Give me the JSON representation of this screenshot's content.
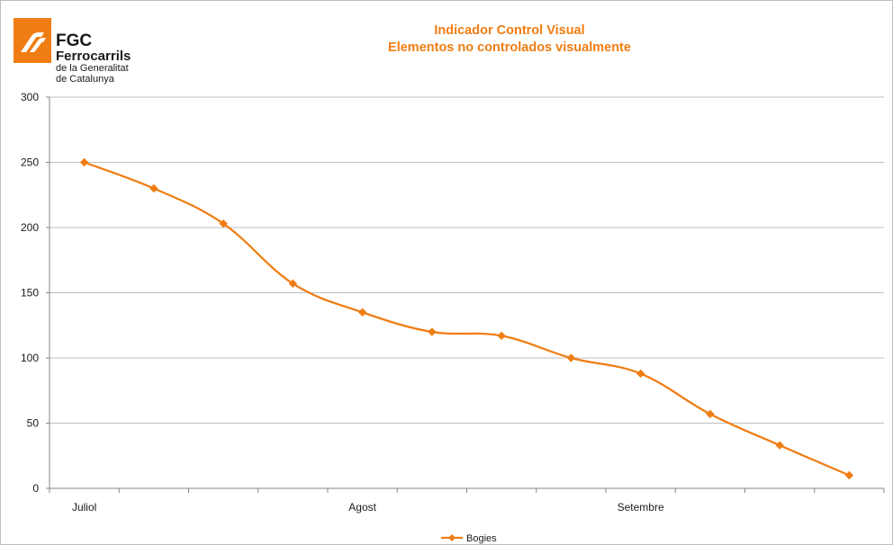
{
  "logo": {
    "name": "FGC",
    "line1": "Ferrocarrils",
    "line2": "de la Generalitat",
    "line3": "de Catalunya"
  },
  "colors": {
    "series": "#f07d14",
    "title": "#f07d14",
    "grid": "#bfbfbf",
    "axis": "#868686"
  },
  "chart_data": {
    "type": "line",
    "title": "Indicador Control Visual",
    "subtitle": "Elementos no controlados visualmente",
    "xlabel": "",
    "ylabel": "",
    "ylim": [
      0,
      300
    ],
    "yticks": [
      0,
      50,
      100,
      150,
      200,
      250,
      300
    ],
    "x_category_labels": [
      "Juliol",
      "",
      "",
      "",
      "Agost",
      "",
      "",
      "",
      "Setembre",
      "",
      "",
      ""
    ],
    "grid": true,
    "legend_position": "bottom",
    "smooth": true,
    "marker": "diamond",
    "series": [
      {
        "name": "Bogies",
        "values": [
          250,
          230,
          203,
          157,
          135,
          120,
          117,
          100,
          88,
          57,
          33,
          10
        ]
      }
    ]
  }
}
